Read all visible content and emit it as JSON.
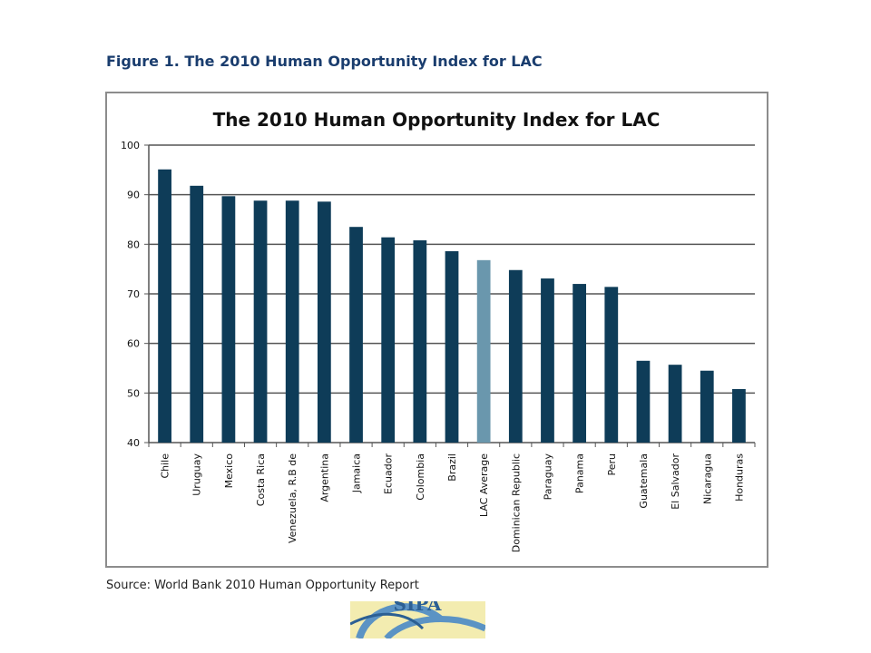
{
  "figure_caption": "Figure 1.  The 2010 Human Opportunity Index for LAC",
  "source": "Source: World Bank 2010 Human Opportunity Report",
  "logo": {
    "text": "SIPA",
    "colors": [
      "#f3ecb0",
      "#5b93c4",
      "#2b5f93"
    ]
  },
  "colors": {
    "bar": "#0e3c58",
    "highlight": "#6a97ad",
    "grid": "#555555"
  },
  "chart_data": {
    "type": "bar",
    "title": "The 2010 Human Opportunity Index for LAC",
    "xlabel": "",
    "ylabel": "",
    "ylim": [
      40,
      100
    ],
    "yticks": [
      40,
      50,
      60,
      70,
      80,
      90,
      100
    ],
    "grid": true,
    "highlight_category": "LAC Average",
    "categories": [
      "Chile",
      "Uruguay",
      "Mexico",
      "Costa Rica",
      "Venezuela, R.B de",
      "Argentina",
      "Jamaica",
      "Ecuador",
      "Colombia",
      "Brazil",
      "LAC Average",
      "Dominican Republic",
      "Paraguay",
      "Panama",
      "Peru",
      "Guatemala",
      "El Salvador",
      "Nicaragua",
      "Honduras"
    ],
    "values": [
      95.1,
      91.8,
      89.7,
      88.8,
      88.8,
      88.6,
      83.5,
      81.4,
      80.8,
      78.6,
      76.8,
      74.8,
      73.1,
      72.0,
      71.4,
      56.5,
      55.7,
      54.5,
      50.8
    ]
  }
}
